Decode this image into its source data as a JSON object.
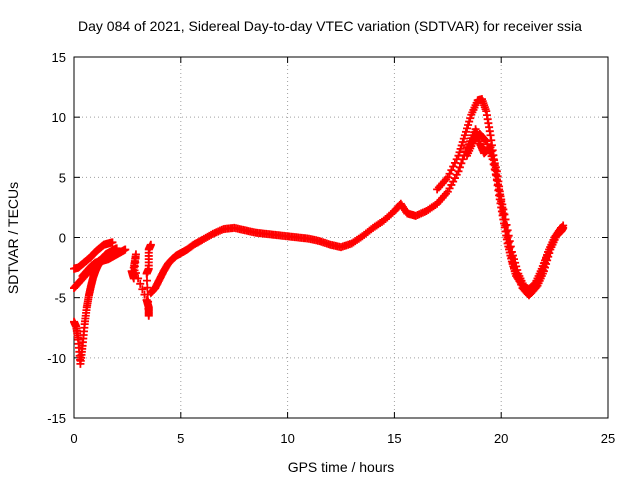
{
  "chart_data": {
    "type": "scatter",
    "title": "Day 084 of 2021, Sidereal Day-to-day VTEC variation (SDTVAR) for receiver ssia",
    "xlabel": "GPS time / hours",
    "ylabel": "SDTVAR / TECUs",
    "xlim": [
      0,
      25
    ],
    "ylim": [
      -15,
      15
    ],
    "xticks": [
      0,
      5,
      10,
      15,
      20,
      25
    ],
    "yticks": [
      -15,
      -10,
      -5,
      0,
      5,
      10,
      15
    ],
    "grid": true,
    "marker": "+",
    "color": "#ff0000",
    "series": [
      {
        "name": "track-a",
        "x": [
          0.0,
          0.1,
          0.2,
          0.3,
          0.4,
          0.5,
          0.6,
          0.7,
          0.8,
          0.9,
          1.0,
          1.1,
          1.2,
          1.3,
          1.4,
          1.5,
          1.6,
          1.7,
          1.8,
          1.9,
          2.0
        ],
        "y": [
          -7.0,
          -7.4,
          -8.5,
          -10.5,
          -9.0,
          -7.2,
          -5.8,
          -4.8,
          -4.0,
          -3.3,
          -2.8,
          -2.4,
          -2.1,
          -1.8,
          -1.6,
          -1.4,
          -1.3,
          -1.2,
          -1.1,
          -1.0,
          -0.9
        ]
      },
      {
        "name": "track-b",
        "x": [
          0.0,
          0.2,
          0.4,
          0.6,
          0.8,
          1.0,
          1.2,
          1.4,
          1.6,
          1.8,
          2.0
        ],
        "y": [
          -4.2,
          -3.8,
          -3.4,
          -3.0,
          -2.6,
          -2.2,
          -1.9,
          -1.7,
          -1.5,
          -1.4,
          -1.3
        ]
      },
      {
        "name": "track-c",
        "x": [
          0.0,
          0.2,
          0.4,
          0.6,
          0.8,
          1.0,
          1.2,
          1.4,
          1.6,
          1.8
        ],
        "y": [
          -2.6,
          -2.5,
          -2.2,
          -1.9,
          -1.6,
          -1.2,
          -0.9,
          -0.6,
          -0.5,
          -0.4
        ]
      },
      {
        "name": "track-d",
        "x": [
          0.4,
          0.6,
          0.8,
          1.0,
          1.2,
          1.4,
          1.6,
          1.8,
          2.0,
          2.2,
          2.4
        ],
        "y": [
          -3.2,
          -2.8,
          -2.4,
          -2.1,
          -2.0,
          -1.9,
          -1.8,
          -1.6,
          -1.4,
          -1.2,
          -1.0
        ]
      },
      {
        "name": "short-segments",
        "x": [
          2.7,
          2.8,
          2.9,
          2.8,
          3.4,
          3.5,
          3.5,
          3.4,
          3.5,
          3.5,
          3.6
        ],
        "y": [
          -2.8,
          -3.4,
          -1.4,
          -2.5,
          -5.2,
          -5.8,
          -6.5,
          -3.0,
          -2.6,
          -1.0,
          -0.6
        ]
      },
      {
        "name": "main-track",
        "x": [
          3.6,
          3.8,
          4.0,
          4.2,
          4.4,
          4.6,
          4.8,
          5.0,
          5.3,
          5.6,
          6.0,
          6.5,
          7.0,
          7.5,
          8.0,
          8.5,
          9.0,
          9.5,
          10.0,
          10.5,
          11.0,
          11.5,
          12.0,
          12.5,
          13.0,
          13.5,
          14.0,
          14.5,
          15.0,
          15.3,
          15.6,
          16.0,
          16.5,
          17.0,
          17.5,
          18.0,
          18.4,
          18.8,
          19.0,
          19.2,
          19.5,
          19.8,
          20.0,
          20.3,
          20.6,
          21.0,
          21.3,
          21.6,
          21.9,
          22.2,
          22.5,
          22.8,
          22.9
        ],
        "y": [
          -4.6,
          -4.2,
          -3.5,
          -2.8,
          -2.2,
          -1.8,
          -1.5,
          -1.3,
          -1.0,
          -0.6,
          -0.2,
          0.3,
          0.7,
          0.8,
          0.6,
          0.4,
          0.3,
          0.2,
          0.1,
          0.0,
          -0.1,
          -0.3,
          -0.6,
          -0.8,
          -0.5,
          0.1,
          0.8,
          1.4,
          2.2,
          2.8,
          2.0,
          1.8,
          2.2,
          2.8,
          3.8,
          5.5,
          7.5,
          9.0,
          7.8,
          7.0,
          7.5,
          5.5,
          3.0,
          0.0,
          -2.5,
          -4.2,
          -4.8,
          -4.2,
          -3.0,
          -1.2,
          0.0,
          0.5,
          0.8
        ]
      },
      {
        "name": "upper-envelope",
        "x": [
          17.0,
          17.5,
          18.0,
          18.3,
          18.6,
          18.9,
          19.1,
          19.3,
          19.5,
          19.7,
          19.9,
          20.1,
          20.3,
          20.5,
          20.7,
          21.0,
          21.3,
          21.6,
          21.9,
          22.2,
          22.5,
          22.8
        ],
        "y": [
          4.0,
          5.0,
          6.8,
          8.5,
          10.2,
          11.4,
          11.5,
          10.5,
          8.5,
          6.0,
          3.5,
          1.5,
          -0.5,
          -2.0,
          -3.2,
          -4.0,
          -4.3,
          -3.8,
          -2.6,
          -1.2,
          0.0,
          0.8
        ]
      },
      {
        "name": "mid-envelope",
        "x": [
          18.4,
          18.7,
          19.0,
          19.3,
          19.6,
          19.9,
          20.2,
          20.5,
          20.8,
          21.1,
          21.4,
          21.7,
          22.0,
          22.3,
          22.6,
          22.9
        ],
        "y": [
          6.8,
          8.0,
          8.6,
          8.0,
          6.5,
          4.0,
          1.5,
          -1.2,
          -3.0,
          -4.2,
          -4.6,
          -4.0,
          -2.8,
          -1.0,
          0.2,
          1.0
        ]
      }
    ]
  }
}
